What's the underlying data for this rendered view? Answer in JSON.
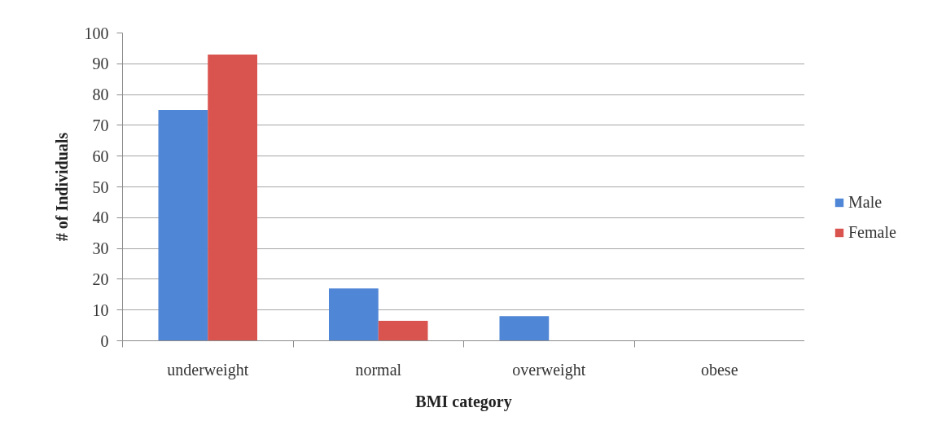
{
  "chart_data": {
    "type": "bar",
    "categories": [
      "underweight",
      "normal",
      "overweight",
      "obese"
    ],
    "series": [
      {
        "name": "Male",
        "color": "#4f86d6",
        "values": [
          75,
          17,
          8,
          0
        ]
      },
      {
        "name": "Female",
        "color": "#d9534f",
        "values": [
          93,
          6.5,
          0,
          0
        ]
      }
    ],
    "xlabel": "BMI category",
    "ylabel": "# of Individuals",
    "ylim": [
      0,
      100
    ],
    "yticks": [
      0,
      10,
      20,
      30,
      40,
      50,
      60,
      70,
      80,
      90,
      100
    ],
    "grid": "y",
    "legend": "right"
  }
}
